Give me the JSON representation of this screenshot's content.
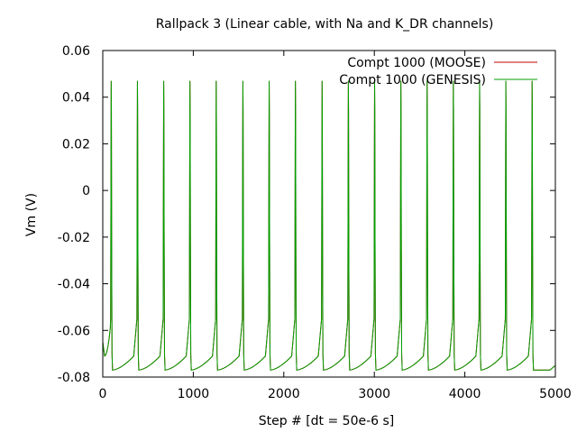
{
  "chart_data": {
    "type": "line",
    "title": "Rallpack 3 (Linear cable, with Na and K_DR channels)",
    "xlabel": "Step # [dt = 50e-6 s]",
    "ylabel": "Vm (V)",
    "xlim": [
      0,
      5000
    ],
    "ylim": [
      -0.08,
      0.06
    ],
    "x_ticks": [
      0,
      1000,
      2000,
      3000,
      4000,
      5000
    ],
    "y_ticks": [
      -0.08,
      -0.06,
      -0.04,
      -0.02,
      0,
      0.02,
      0.04,
      0.06
    ],
    "x_tick_labels": [
      "0",
      "1000",
      "2000",
      "3000",
      "4000",
      "5000"
    ],
    "y_tick_labels": [
      "-0.08",
      "-0.06",
      "-0.04",
      "-0.02",
      "0",
      "0.02",
      "0.04",
      "0.06"
    ],
    "grid": false,
    "legend_position": "top-right",
    "rest_potential": -0.077,
    "initial_value": -0.065,
    "spike_peaks_x": [
      93,
      383,
      673,
      963,
      1253,
      1548,
      1838,
      2128,
      2423,
      2713,
      3003,
      3293,
      3583,
      3873,
      4163,
      4453,
      4743
    ],
    "spike_peak_value": 0.047,
    "series": [
      {
        "name": "Compt 1000 (MOOSE)",
        "color": "#c00000"
      },
      {
        "name": "Compt 1000 (GENESIS)",
        "color": "#00a000"
      }
    ]
  }
}
